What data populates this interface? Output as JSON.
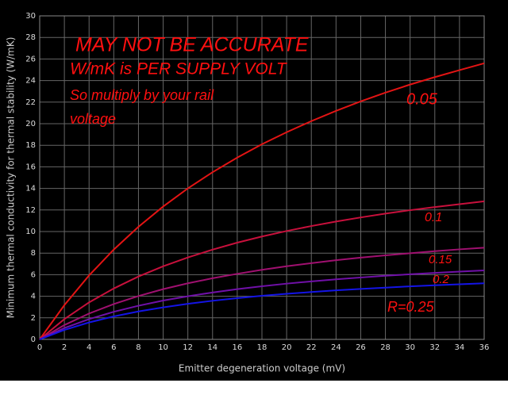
{
  "chart_data": {
    "type": "line",
    "x_label": "Emitter degeneration voltage (mV)",
    "y_label": "Minimum thermal conductivity for thermal stability (W/mK)",
    "x": [
      0,
      2,
      4,
      6,
      8,
      10,
      12,
      14,
      16,
      18,
      20,
      22,
      24,
      26,
      28,
      30,
      32,
      34,
      36
    ],
    "series": [
      {
        "name": "0.05",
        "color": "#e31414",
        "values": [
          0,
          3.18,
          5.93,
          8.33,
          10.44,
          12.32,
          14.0,
          15.5,
          16.86,
          18.1,
          19.21,
          20.24,
          21.19,
          22.07,
          22.88,
          23.63,
          24.32,
          24.97,
          25.6
        ]
      },
      {
        "name": "0.1",
        "color": "#c8103c",
        "values": [
          0,
          1.88,
          3.43,
          4.72,
          5.83,
          6.78,
          7.6,
          8.32,
          8.97,
          9.54,
          10.05,
          10.51,
          10.93,
          11.31,
          11.66,
          11.98,
          12.27,
          12.54,
          12.8
        ]
      },
      {
        "name": "0.15",
        "color": "#a01070",
        "values": [
          0,
          1.33,
          2.4,
          3.28,
          4.02,
          4.66,
          5.2,
          5.67,
          6.08,
          6.45,
          6.78,
          7.07,
          7.34,
          7.58,
          7.79,
          7.99,
          8.18,
          8.35,
          8.5
        ]
      },
      {
        "name": "0.2",
        "color": "#7010a8",
        "values": [
          0,
          1.05,
          1.88,
          2.56,
          3.12,
          3.6,
          4.0,
          4.35,
          4.66,
          4.93,
          5.17,
          5.38,
          5.57,
          5.74,
          5.9,
          6.04,
          6.17,
          6.29,
          6.4
        ]
      },
      {
        "name": "R=0.25",
        "color": "#1414e6",
        "values": [
          0,
          0.88,
          1.57,
          2.13,
          2.59,
          2.97,
          3.3,
          3.58,
          3.82,
          4.04,
          4.23,
          4.39,
          4.55,
          4.68,
          4.8,
          4.92,
          5.02,
          5.11,
          5.2
        ]
      }
    ],
    "annotations": [
      "MAY NOT BE ACCURATE",
      "W/mK is PER SUPPLY VOLT",
      "So multiply by your rail",
      "voltage"
    ],
    "xlim": [
      0,
      36
    ],
    "xticks": [
      0,
      2,
      4,
      6,
      8,
      10,
      12,
      14,
      16,
      18,
      20,
      22,
      24,
      26,
      28,
      30,
      32,
      34,
      36
    ],
    "ylim": [
      0,
      30
    ],
    "yticks": [
      0,
      2,
      4,
      6,
      8,
      10,
      12,
      14,
      16,
      18,
      20,
      22,
      24,
      26,
      28,
      30
    ],
    "grid": true
  }
}
